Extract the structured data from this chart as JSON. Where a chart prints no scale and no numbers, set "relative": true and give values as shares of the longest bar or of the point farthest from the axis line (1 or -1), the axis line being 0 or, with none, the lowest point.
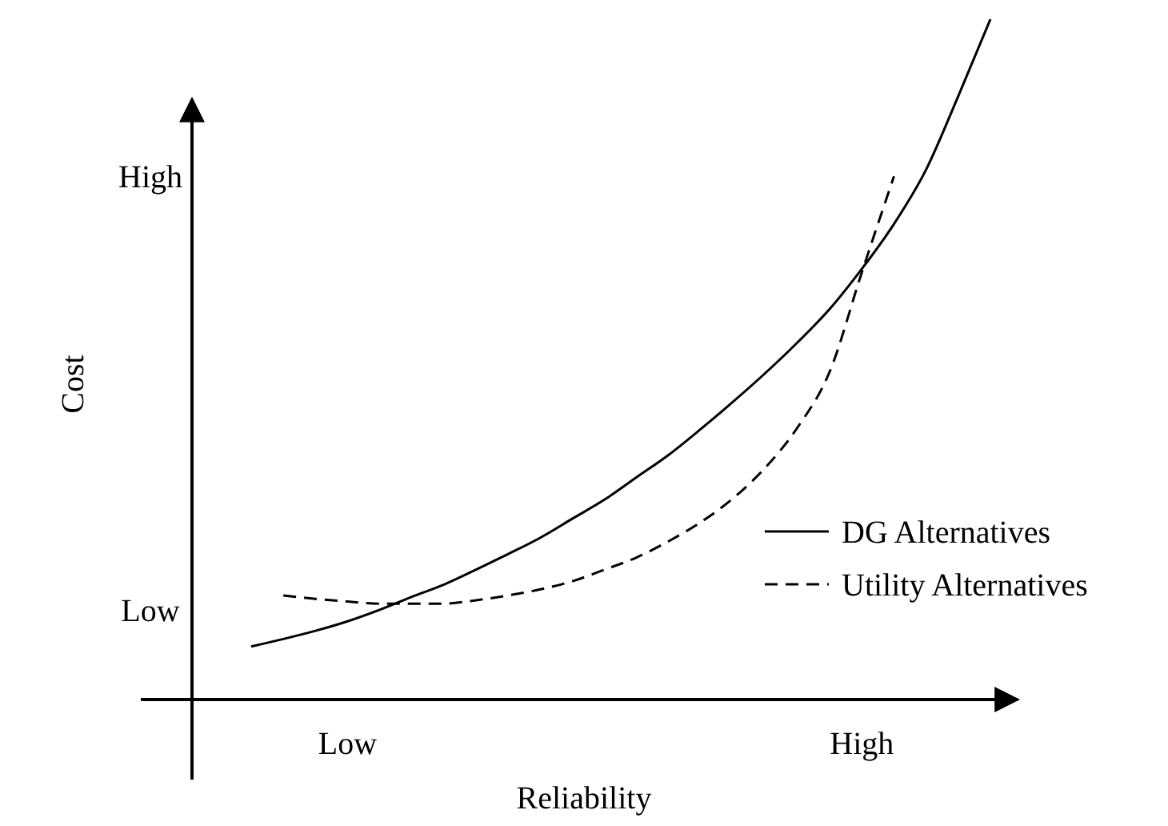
{
  "chart_data": {
    "type": "line",
    "xlabel": "Reliability",
    "ylabel": "Cost",
    "relative": true,
    "categories": [
      null,
      null,
      null,
      "Low",
      null,
      null,
      null,
      null,
      null,
      null,
      null,
      null,
      null,
      null,
      null,
      null,
      null,
      null,
      null,
      "High",
      null,
      null,
      null,
      null
    ],
    "annotations": [
      "High",
      "Low"
    ],
    "legend": "right",
    "grid": false,
    "marker": "none",
    "series": [
      {
        "name": "DG Alternatives",
        "color": "#000000",
        "line_style": "solid",
        "values": [
          0.078,
          0.089,
          0.101,
          0.115,
          0.132,
          0.151,
          0.169,
          0.191,
          0.214,
          0.238,
          0.266,
          0.294,
          0.327,
          0.36,
          0.398,
          0.438,
          0.48,
          0.525,
          0.574,
          0.633,
          0.699,
          0.779,
          0.887,
          1
        ]
      },
      {
        "name": "Utility Alternatives",
        "color": "#000000",
        "line_style": "dashed",
        "values": [
          null,
          0.153,
          0.148,
          0.144,
          0.141,
          0.141,
          0.141,
          0.146,
          0.153,
          0.162,
          0.174,
          0.191,
          0.209,
          0.233,
          0.261,
          0.296,
          0.341,
          0.4,
          0.482,
          0.628,
          0.769,
          null,
          null,
          null
        ]
      }
    ]
  }
}
